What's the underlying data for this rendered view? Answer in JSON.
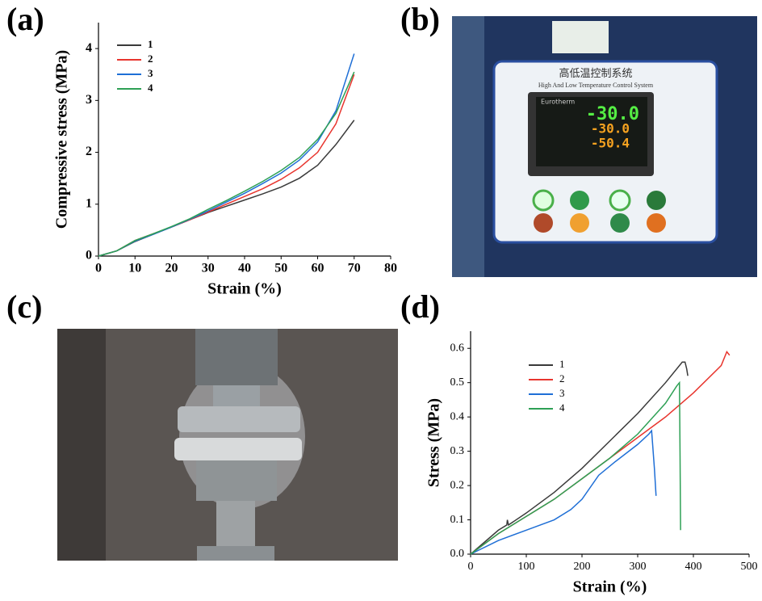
{
  "panel_labels": [
    "(a)",
    "(b)",
    "(c)",
    "(d)"
  ],
  "photo_b": {
    "title_cn": "高低温控制系统",
    "title_en": "High And Low Temperature Control System",
    "brand": "Eurotherm",
    "readings": [
      "-30.0",
      "-30.0",
      "-50.4"
    ]
  },
  "chart_data": [
    {
      "type": "line",
      "x_label": "Strain (%)",
      "y_label": "Compressive stress (MPa)",
      "bold": true,
      "x": [
        0,
        5,
        10,
        15,
        20,
        25,
        30,
        35,
        40,
        45,
        50,
        55,
        60,
        65,
        70
      ],
      "xlim": [
        0,
        80
      ],
      "xticks": [
        0,
        10,
        20,
        30,
        40,
        50,
        60,
        70,
        80
      ],
      "ylim": [
        0,
        4.5
      ],
      "yticks": [
        0,
        1,
        2,
        3,
        4
      ],
      "series": [
        {
          "name": "1",
          "color": "#3a3a3a",
          "values": [
            0,
            0.1,
            0.28,
            0.42,
            0.56,
            0.7,
            0.84,
            0.96,
            1.08,
            1.2,
            1.33,
            1.5,
            1.75,
            2.15,
            2.62
          ]
        },
        {
          "name": "2",
          "color": "#e8352e",
          "values": [
            0,
            0.1,
            0.3,
            0.43,
            0.56,
            0.7,
            0.85,
            1.0,
            1.15,
            1.3,
            1.48,
            1.7,
            2.0,
            2.55,
            3.5
          ]
        },
        {
          "name": "3",
          "color": "#1f6fd6",
          "values": [
            0,
            0.1,
            0.29,
            0.42,
            0.56,
            0.71,
            0.87,
            1.04,
            1.21,
            1.4,
            1.6,
            1.85,
            2.2,
            2.8,
            3.9
          ]
        },
        {
          "name": "4",
          "color": "#2ea055",
          "values": [
            0,
            0.1,
            0.3,
            0.43,
            0.57,
            0.72,
            0.9,
            1.07,
            1.25,
            1.44,
            1.65,
            1.9,
            2.25,
            2.75,
            3.55
          ]
        }
      ]
    },
    {
      "type": "line",
      "x_label": "Strain (%)",
      "y_label": "Stress (MPa)",
      "bold": false,
      "xlim": [
        0,
        500
      ],
      "xticks": [
        0,
        100,
        200,
        300,
        400,
        500
      ],
      "ylim": [
        0,
        0.65
      ],
      "yticks": [
        {
          "value": 0,
          "label": "0.0"
        },
        0.1,
        0.2,
        0.3,
        0.4,
        0.5,
        0.6
      ],
      "series": [
        {
          "name": "1",
          "color": "#3a3a3a",
          "x": [
            0,
            50,
            65,
            66,
            68,
            100,
            150,
            200,
            250,
            300,
            350,
            380,
            385,
            388,
            390
          ],
          "values": [
            0,
            0.07,
            0.085,
            0.1,
            0.085,
            0.12,
            0.18,
            0.25,
            0.33,
            0.41,
            0.5,
            0.56,
            0.56,
            0.54,
            0.52
          ]
        },
        {
          "name": "2",
          "color": "#e8352e",
          "x": [
            0,
            50,
            100,
            150,
            200,
            250,
            300,
            350,
            400,
            450,
            460,
            465
          ],
          "values": [
            0,
            0.06,
            0.11,
            0.16,
            0.22,
            0.28,
            0.34,
            0.4,
            0.47,
            0.55,
            0.59,
            0.58
          ]
        },
        {
          "name": "3",
          "color": "#1f6fd6",
          "x": [
            0,
            50,
            100,
            150,
            180,
            200,
            230,
            260,
            300,
            320,
            325,
            330,
            333
          ],
          "values": [
            0,
            0.04,
            0.07,
            0.1,
            0.13,
            0.16,
            0.23,
            0.27,
            0.32,
            0.35,
            0.36,
            0.25,
            0.17
          ]
        },
        {
          "name": "4",
          "color": "#2ea055",
          "x": [
            0,
            50,
            100,
            150,
            200,
            250,
            300,
            350,
            370,
            375,
            376,
            377
          ],
          "values": [
            0,
            0.06,
            0.11,
            0.16,
            0.22,
            0.28,
            0.35,
            0.44,
            0.49,
            0.5,
            0.3,
            0.07
          ]
        }
      ]
    }
  ]
}
